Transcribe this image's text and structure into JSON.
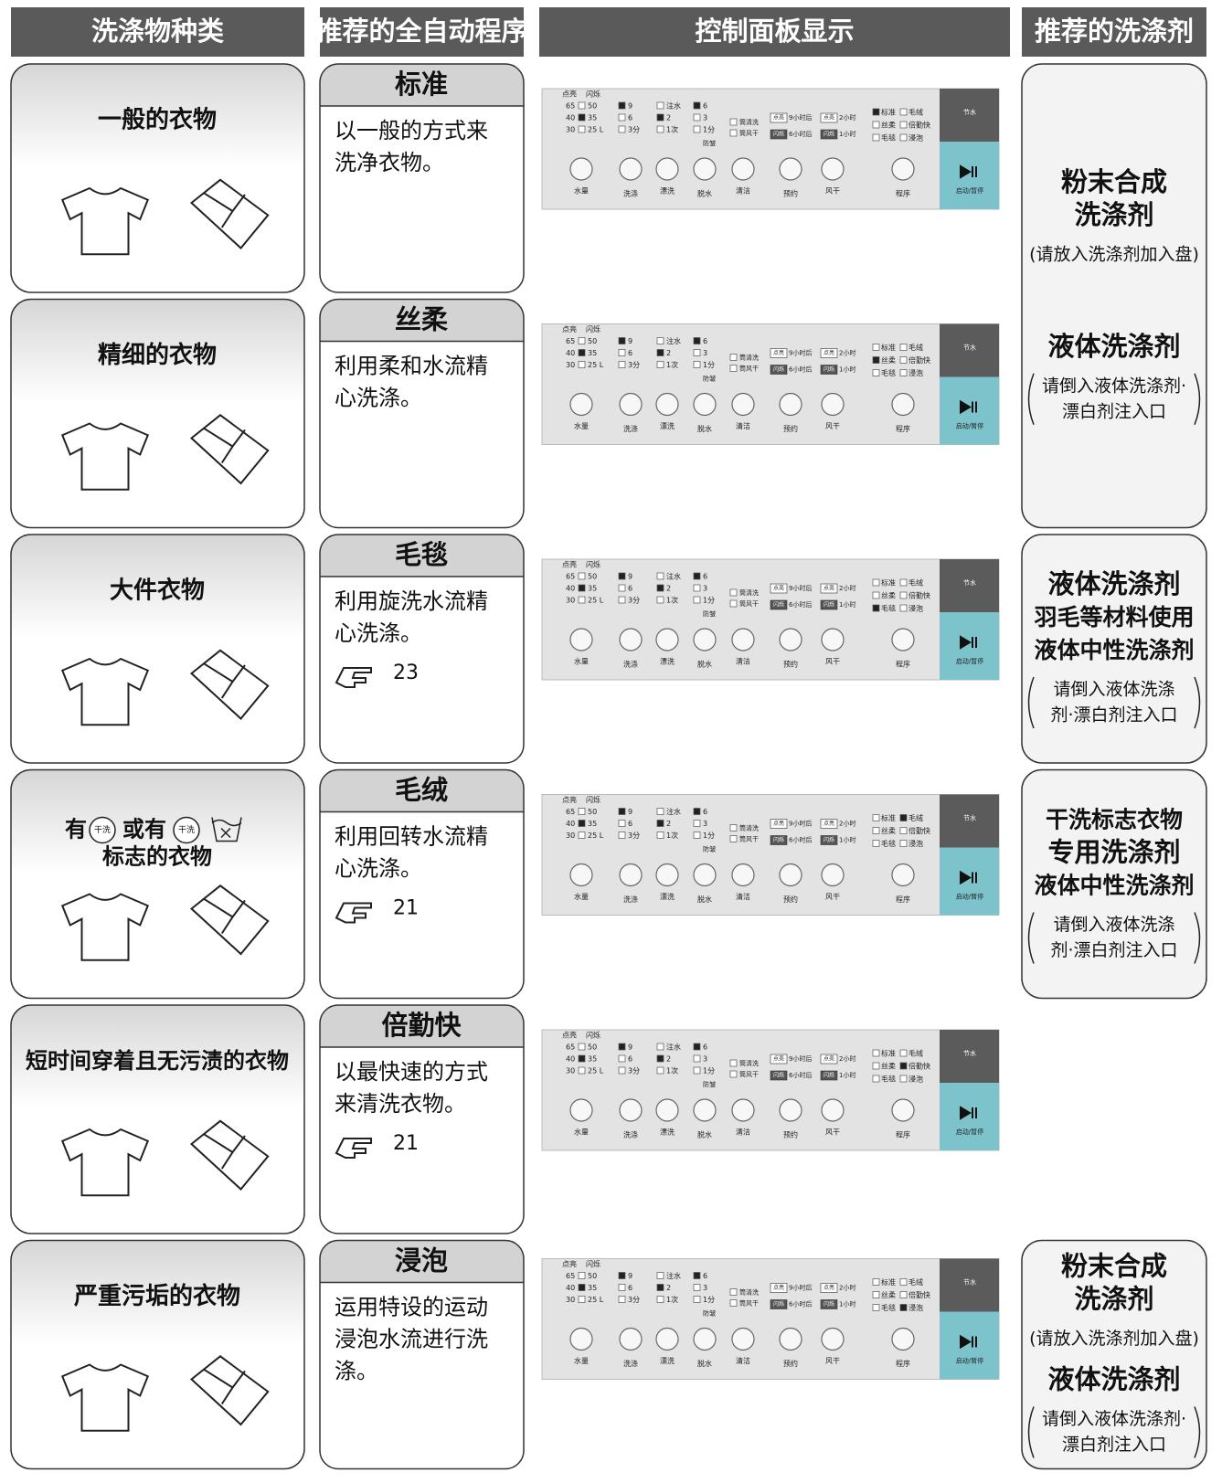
{
  "header": [
    "洗涤物种类",
    "推荐的全自动程序",
    "控制面板显示",
    "推荐的洗涤剂"
  ],
  "rows": [
    {
      "item": "一般的衣物",
      "program": "标准",
      "description": [
        "以一般的方式来",
        "洗净衣物。"
      ]
    },
    {
      "item": "精细的衣物",
      "program": "丝柔",
      "description": [
        "利用柔和水流精",
        "心洗涤。"
      ]
    },
    {
      "item": "大件衣物",
      "program": "毛毯",
      "description": [
        "利用旋洗水流精",
        "心洗涤。"
      ],
      "page": 23
    },
    {
      "item_parts": [
        "有",
        "或有",
        "标志的衣物"
      ],
      "symbol": "干洗",
      "program": "毛绒",
      "description": [
        "利用回转水流精",
        "心洗涤。"
      ],
      "page": 21
    },
    {
      "item": "短时间穿着且无污渍的衣物",
      "program": "倍勤快",
      "description": [
        "以最快速的方式",
        "来清洗衣物。"
      ],
      "page": 21
    },
    {
      "item": "严重污垢的衣物",
      "program": "浸泡",
      "description": [
        "运用特设的运动",
        "浸泡水流进行洗",
        "涤。"
      ]
    }
  ],
  "panel": {
    "tags": [
      "点亮",
      "闪烁"
    ],
    "water": [
      "65",
      "50",
      "40",
      "35",
      "30",
      "25 L"
    ],
    "wash": [
      "9",
      "6",
      "3分"
    ],
    "rinse": [
      "注水",
      "2",
      "1次"
    ],
    "spin": [
      "6",
      "3",
      "1分"
    ],
    "anti": "防皱",
    "clean": [
      "筒清洗",
      "筒风干"
    ],
    "timer": [
      "9小时后",
      "2小时",
      "6小时后",
      "1小时"
    ],
    "programs": [
      "标准",
      "毛绒",
      "丝柔",
      "倍勤快",
      "毛毯",
      "浸泡"
    ],
    "eco": "节水",
    "buttons": [
      "水量",
      "洗涤",
      "漂洗",
      "脱水",
      "清洁",
      "预约",
      "风干",
      "程序"
    ],
    "start": "启动/暂停"
  },
  "detergents": [
    {
      "groups": [
        {
          "name": [
            "粉末合成",
            "洗涤剂"
          ],
          "note": [
            "(请放入洗涤剂加入盘)"
          ]
        },
        {
          "name": [
            "液体洗涤剂"
          ],
          "note": [
            "请倒入液体洗涤剂·",
            "漂白剂注入口"
          ]
        }
      ]
    },
    {
      "groups": [
        {
          "name": [
            "液体洗涤剂",
            "羽毛等材料使用",
            "液体中性洗涤剂"
          ],
          "note": [
            "请倒入液体洗涤",
            "剂·漂白剂注入口"
          ]
        }
      ]
    },
    {
      "groups": [
        {
          "name": [
            "干洗标志衣物",
            "专用洗涤剂",
            "液体中性洗涤剂"
          ],
          "note": [
            "请倒入液体洗涤",
            "剂·漂白剂注入口"
          ]
        }
      ]
    },
    {
      "groups": [
        {
          "name": [
            "粉末合成",
            "洗涤剂"
          ],
          "note": [
            "(请放入洗涤剂加入盘)"
          ]
        },
        {
          "name": [
            "液体洗涤剂"
          ],
          "note": [
            "请倒入液体洗涤剂·",
            "漂白剂注入口"
          ]
        }
      ]
    }
  ]
}
